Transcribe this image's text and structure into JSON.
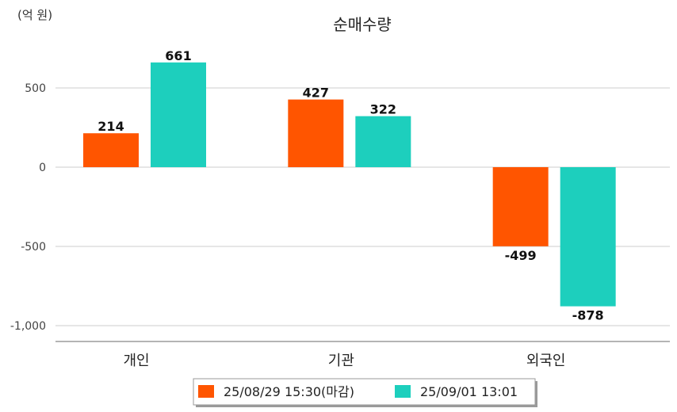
{
  "chart_data": {
    "type": "bar",
    "title": "순매수량",
    "unit_label": "(억 원)",
    "xlabel": "",
    "ylabel": "",
    "categories": [
      "개인",
      "기관",
      "외국인"
    ],
    "series": [
      {
        "name": "25/08/29 15:30(마감)",
        "values": [
          214,
          427,
          -499
        ],
        "color": "#FF5500"
      },
      {
        "name": "25/09/01 13:01",
        "values": [
          661,
          322,
          -878
        ],
        "color": "#1DCFBD"
      }
    ],
    "yticks": [
      500,
      0,
      -500,
      -1000
    ],
    "ytick_labels": [
      "500",
      "0",
      "-500",
      "-1,000"
    ],
    "ylim": [
      -1100,
      800
    ],
    "grid": true,
    "legend": "bottom-center"
  }
}
